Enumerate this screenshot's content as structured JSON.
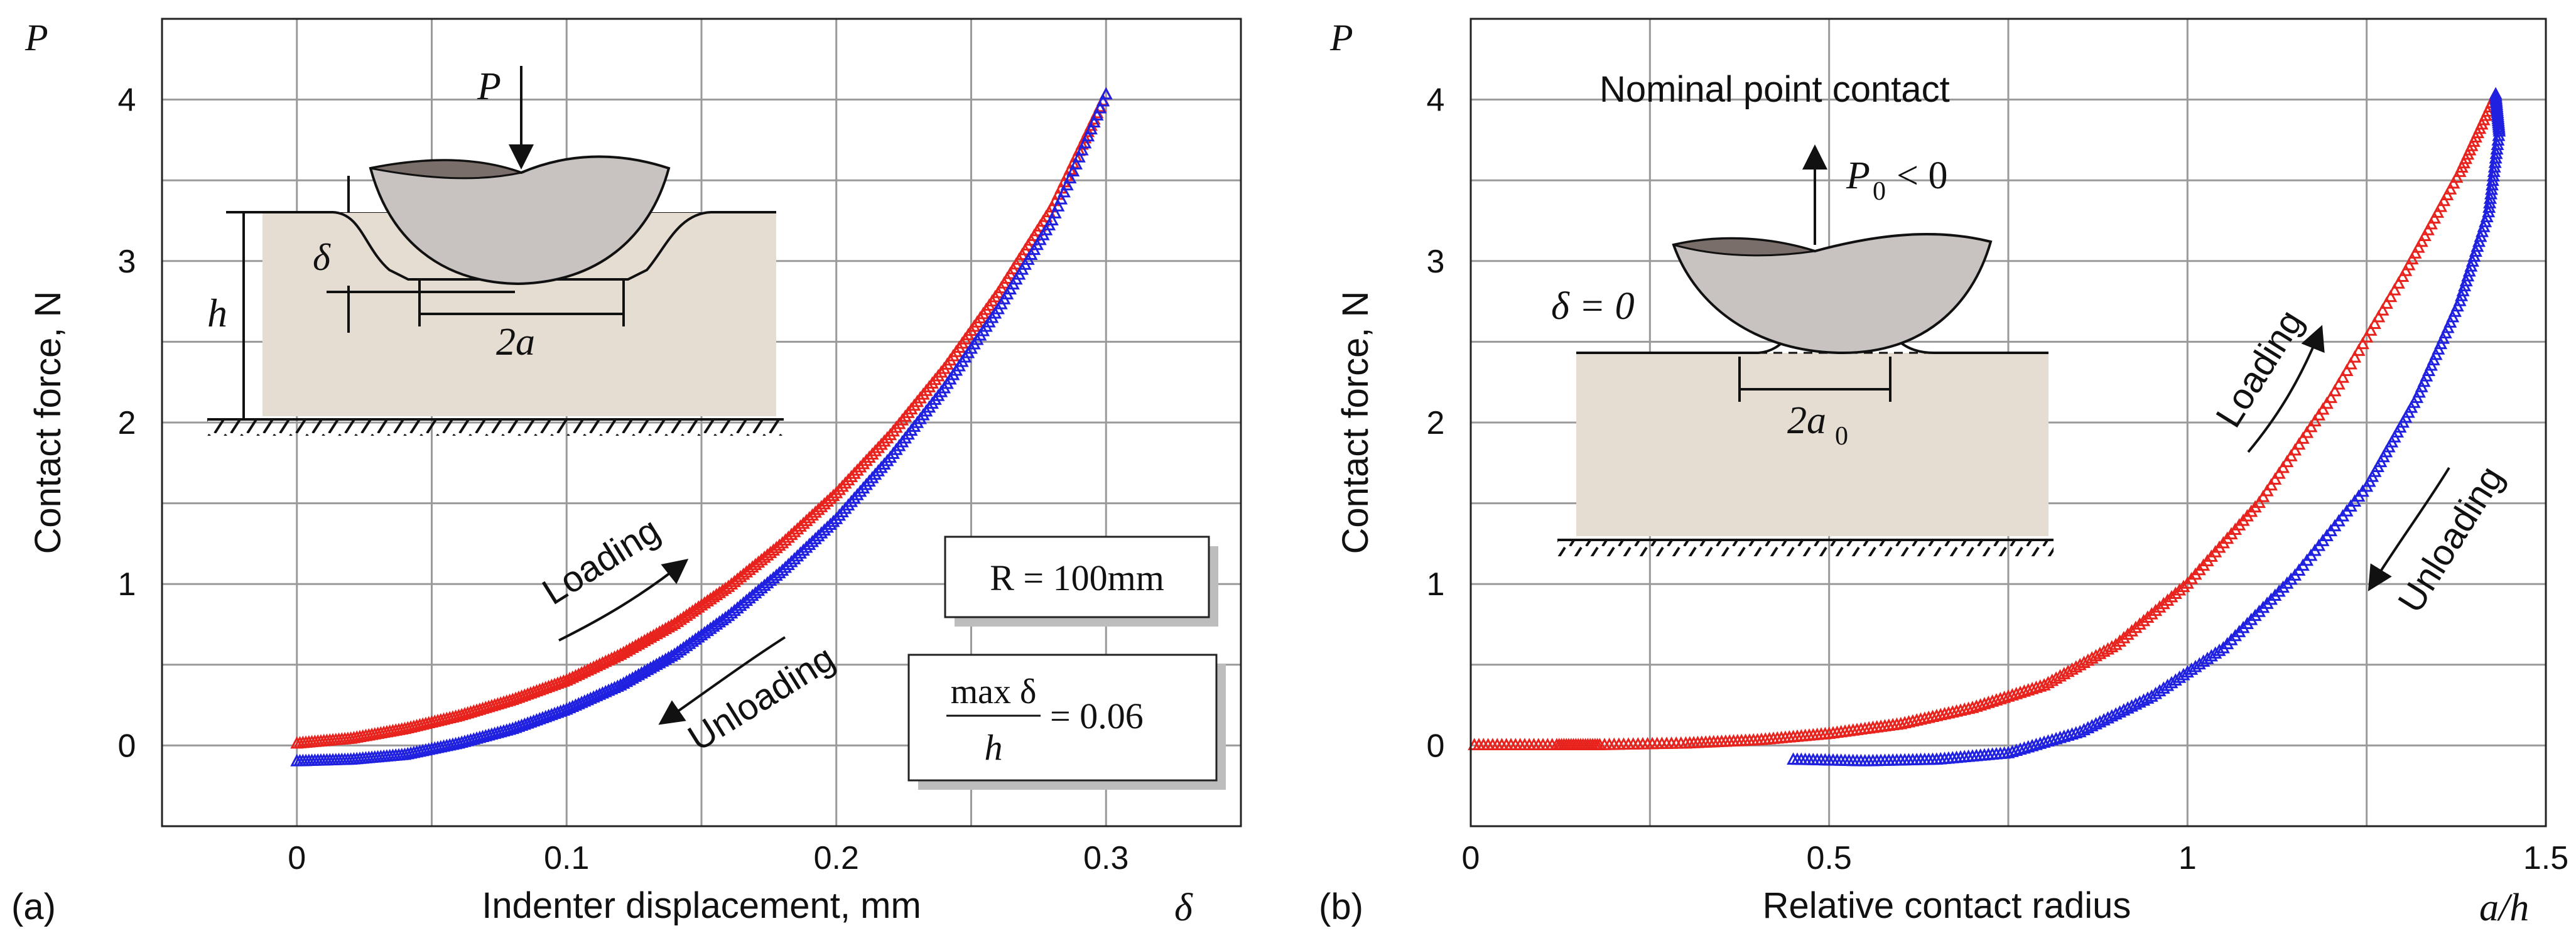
{
  "chart_data": [
    {
      "id": "a",
      "type": "scatter",
      "panel_label": "(a)",
      "xlabel": "Indenter displacement, mm",
      "xlabel_symbol": "δ",
      "ylabel": "Contact force, N",
      "ylabel_symbol": "P",
      "xlim": [
        -0.05,
        0.35
      ],
      "ylim": [
        -0.5,
        4.5
      ],
      "xticks": [
        0,
        0.1,
        0.2,
        0.3
      ],
      "xtick_labels": [
        "0",
        "0.1",
        "0.2",
        "0.3"
      ],
      "yticks": [
        0,
        1,
        2,
        3,
        4
      ],
      "ytick_labels": [
        "0",
        "1",
        "2",
        "3",
        "4"
      ],
      "grid_x": [
        -0.05,
        0,
        0.05,
        0.1,
        0.15,
        0.2,
        0.25,
        0.3,
        0.35
      ],
      "grid_y": [
        -0.5,
        0,
        0.5,
        1,
        1.5,
        2,
        2.5,
        3,
        3.5,
        4,
        4.5
      ],
      "series": [
        {
          "name": "Loading",
          "color": "#e8221d",
          "x": [
            0,
            0.02,
            0.04,
            0.06,
            0.08,
            0.1,
            0.12,
            0.14,
            0.16,
            0.18,
            0.2,
            0.22,
            0.24,
            0.26,
            0.28,
            0.3
          ],
          "y": [
            0.01,
            0.04,
            0.1,
            0.18,
            0.28,
            0.4,
            0.56,
            0.75,
            0.98,
            1.25,
            1.56,
            1.92,
            2.33,
            2.8,
            3.33,
            4.03
          ]
        },
        {
          "name": "Unloading",
          "color": "#2020e0",
          "x": [
            0,
            0.02,
            0.04,
            0.06,
            0.08,
            0.1,
            0.12,
            0.14,
            0.16,
            0.18,
            0.2,
            0.22,
            0.24,
            0.26,
            0.28,
            0.3
          ],
          "y": [
            -0.1,
            -0.09,
            -0.06,
            0.01,
            0.1,
            0.22,
            0.37,
            0.56,
            0.8,
            1.08,
            1.4,
            1.78,
            2.21,
            2.7,
            3.25,
            4.03
          ]
        }
      ],
      "annotations": {
        "loading": "Loading",
        "unloading": "Unloading",
        "radius_box": "R = 100mm",
        "ratio_box": {
          "numerator": "max δ",
          "denominator": "h",
          "value": "= 0.06"
        },
        "diagram": {
          "force": "P",
          "delta": "δ",
          "h": "h",
          "two_a": "2a"
        }
      }
    },
    {
      "id": "b",
      "type": "scatter",
      "panel_label": "(b)",
      "xlabel": "Relative contact radius",
      "xlabel_symbol": "a/h",
      "ylabel": "Contact force, N",
      "ylabel_symbol": "P",
      "xlim": [
        0,
        1.5
      ],
      "ylim": [
        -0.5,
        4.5
      ],
      "xticks": [
        0,
        0.5,
        1,
        1.5
      ],
      "xtick_labels": [
        "0",
        "0.5",
        "1",
        "1.5"
      ],
      "yticks": [
        0,
        1,
        2,
        3,
        4
      ],
      "ytick_labels": [
        "0",
        "1",
        "2",
        "3",
        "4"
      ],
      "grid_x": [
        0,
        0.25,
        0.5,
        0.75,
        1,
        1.25,
        1.5
      ],
      "grid_y": [
        -0.5,
        0,
        0.5,
        1,
        1.5,
        2,
        2.5,
        3,
        3.5,
        4,
        4.5
      ],
      "series": [
        {
          "name": "Loading",
          "color": "#e8221d",
          "x": [
            0.005,
            0.12,
            0.18,
            0.3,
            0.4,
            0.5,
            0.6,
            0.7,
            0.8,
            0.9,
            1.0,
            1.1,
            1.2,
            1.3,
            1.38,
            1.43
          ],
          "y": [
            0,
            0,
            0,
            0.01,
            0.03,
            0.07,
            0.13,
            0.23,
            0.37,
            0.62,
            1.0,
            1.5,
            2.15,
            2.9,
            3.55,
            4.03
          ]
        },
        {
          "name": "Unloading",
          "color": "#2020e0",
          "x": [
            0.45,
            0.55,
            0.65,
            0.75,
            0.85,
            0.95,
            1.05,
            1.15,
            1.25,
            1.32,
            1.38,
            1.42,
            1.435,
            1.43
          ],
          "y": [
            -0.09,
            -0.1,
            -0.09,
            -0.05,
            0.08,
            0.3,
            0.6,
            1.05,
            1.6,
            2.15,
            2.75,
            3.3,
            3.8,
            4.03
          ]
        }
      ],
      "annotations": {
        "title": "Nominal point contact",
        "loading": "Loading",
        "unloading": "Unloading",
        "diagram": {
          "force": "P",
          "force_sub": "0",
          "force_rel": "< 0",
          "delta_zero": "δ = 0",
          "two_a0": "2a",
          "two_a0_sub": "0"
        }
      }
    }
  ]
}
